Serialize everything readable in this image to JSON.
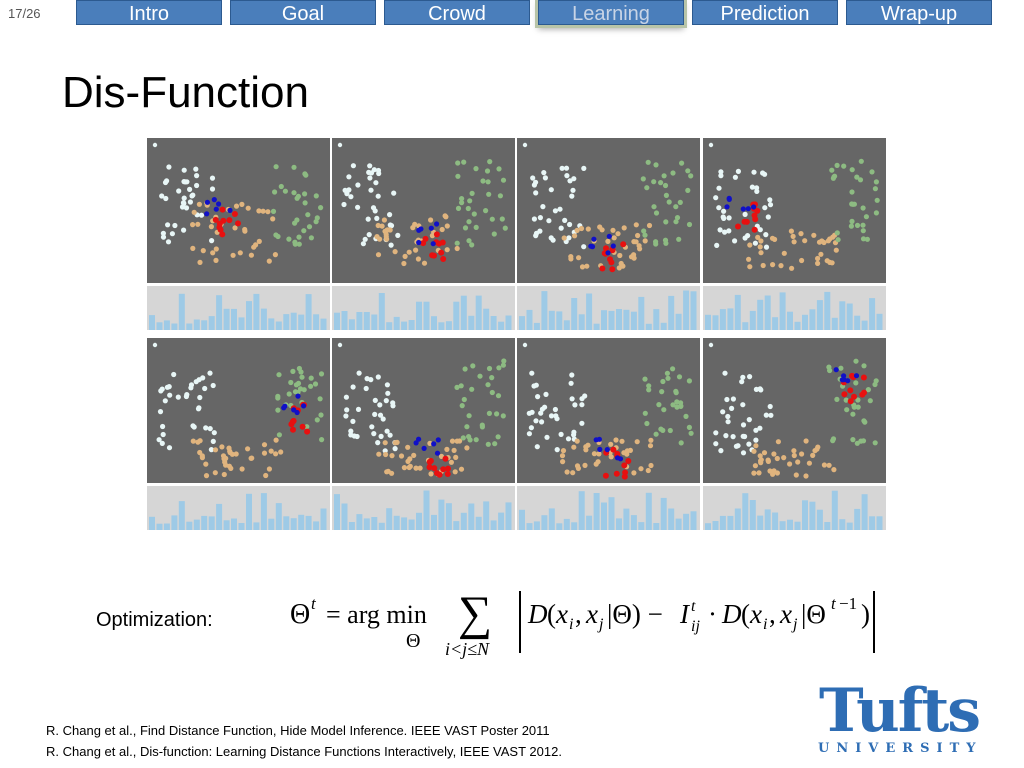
{
  "slide_number": "17/26",
  "nav": {
    "tabs": [
      {
        "label": "Intro",
        "active": false
      },
      {
        "label": "Goal",
        "active": false
      },
      {
        "label": "Crowd",
        "active": false
      },
      {
        "label": "Learning",
        "active": true
      },
      {
        "label": "Prediction",
        "active": false
      },
      {
        "label": "Wrap-up",
        "active": false
      }
    ]
  },
  "title": "Dis-Function",
  "colors": {
    "nav_tab": "#4a7ebb",
    "plot_bg": "#666666",
    "hist_bg": "#d6d6d6",
    "hist_bar": "#9ecae6",
    "point_white": "#e8f6f6",
    "point_tan": "#e0b47e",
    "point_green": "#8dbb82",
    "point_red": "#e81010",
    "point_blue": "#1010c8",
    "point_cyan": "#40e0e0",
    "logo": "#2e6db4"
  },
  "optimization": {
    "label": "Optimization:",
    "formula": "Θ^t = arg min_Θ Σ_{i<j≤N} | D(x_i, x_j | Θ) − I^t_ij · D(x_i, x_j | Θ^(t−1)) |"
  },
  "references": [
    "R. Chang et al.,  Find Distance Function, Hide Model Inference.  IEEE VAST Poster 2011",
    "R. Chang et al., Dis-function: Learning Distance Functions Interactively, IEEE VAST 2012."
  ],
  "logo": {
    "main": "Tufts",
    "sub": "UNIVERSITY"
  }
}
